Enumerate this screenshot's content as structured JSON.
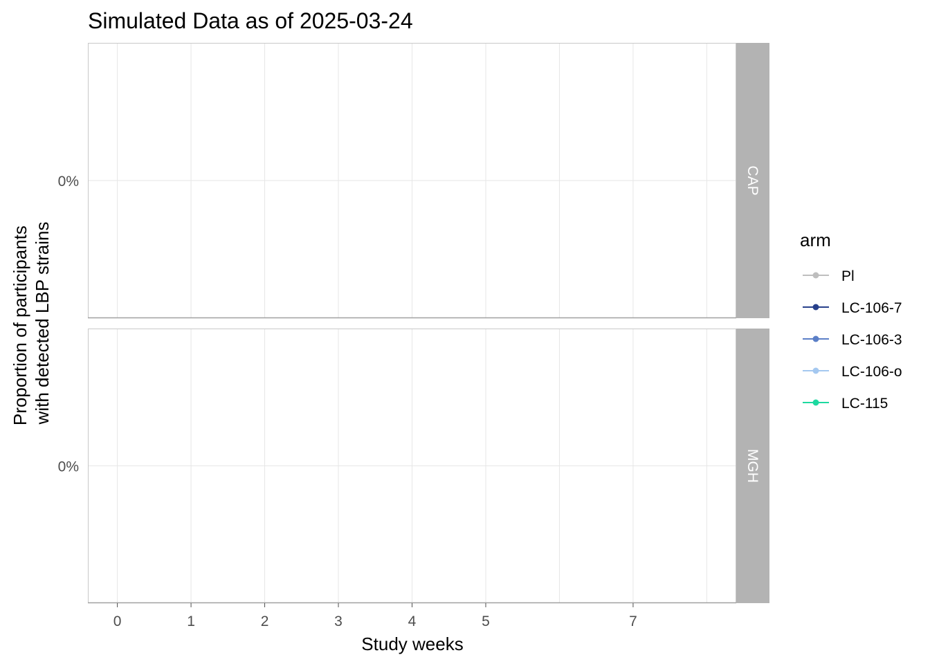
{
  "chart_data": {
    "type": "line",
    "title": "Simulated Data as of 2025-03-24",
    "xlabel": "Study weeks",
    "ylabel_lines": [
      "Proportion of participants",
      "with detected LBP strains"
    ],
    "x_ticks": [
      0,
      1,
      2,
      3,
      4,
      5,
      7
    ],
    "x_gridlines": [
      0,
      1,
      2,
      3,
      4,
      5,
      6,
      7,
      8
    ],
    "xlim": [
      -0.4,
      8.4
    ],
    "y_ticks": [
      "0%"
    ],
    "grid": true,
    "facets": [
      {
        "label": "CAP",
        "series": []
      },
      {
        "label": "MGH",
        "series": []
      }
    ],
    "legend": {
      "title": "arm",
      "position": "right",
      "entries": [
        {
          "label": "Pl",
          "color": "#BEBEBE"
        },
        {
          "label": "LC-106-7",
          "color": "#27408B"
        },
        {
          "label": "LC-106-3",
          "color": "#5B7FC7"
        },
        {
          "label": "LC-106-o",
          "color": "#A4C8F0"
        },
        {
          "label": "LC-115",
          "color": "#1DD9A0"
        }
      ]
    }
  }
}
